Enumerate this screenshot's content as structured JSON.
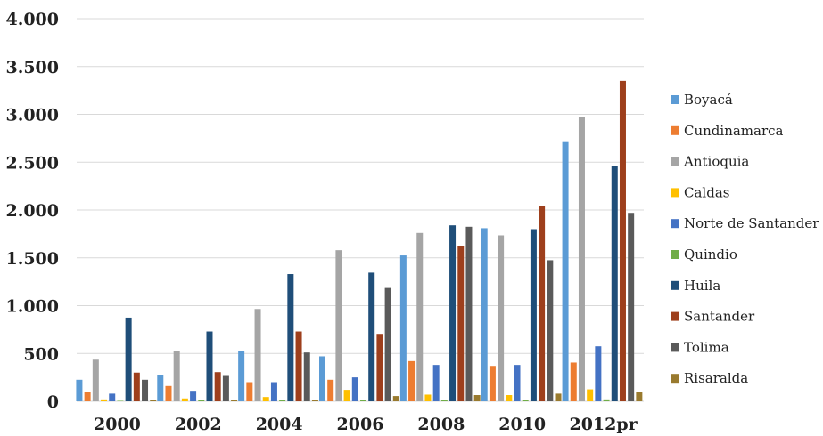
{
  "chart_data": {
    "type": "bar",
    "title": "",
    "xlabel": "",
    "ylabel": "",
    "categories": [
      "2000",
      "2002",
      "2004",
      "2006",
      "2008",
      "2010",
      "2012pr"
    ],
    "ylim": [
      0,
      4000
    ],
    "yticks": [
      0,
      500,
      1000,
      1500,
      2000,
      2500,
      3000,
      3500,
      4000
    ],
    "ytick_labels": [
      "0",
      "500",
      "1.000",
      "1.500",
      "2.000",
      "2.500",
      "3.000",
      "3.500",
      "4.000"
    ],
    "grid": true,
    "legend_position": "right",
    "series": [
      {
        "name": "Boyacá",
        "color": "#5b9bd5",
        "values": [
          225,
          275,
          525,
          470,
          1525,
          1810,
          2710
        ]
      },
      {
        "name": "Cundinamarca",
        "color": "#ed7d31",
        "values": [
          95,
          160,
          200,
          225,
          420,
          370,
          405
        ]
      },
      {
        "name": "Antioquia",
        "color": "#a5a5a5",
        "values": [
          435,
          525,
          965,
          1580,
          1760,
          1735,
          2970
        ]
      },
      {
        "name": "Caldas",
        "color": "#ffc000",
        "values": [
          20,
          30,
          45,
          120,
          70,
          65,
          125
        ]
      },
      {
        "name": "Norte de Santander",
        "color": "#4472c4",
        "values": [
          80,
          110,
          200,
          250,
          380,
          380,
          575
        ]
      },
      {
        "name": "Quindio",
        "color": "#70ad47",
        "values": [
          5,
          10,
          10,
          10,
          15,
          15,
          20
        ]
      },
      {
        "name": "Huila",
        "color": "#1f4e79",
        "values": [
          875,
          730,
          1330,
          1345,
          1840,
          1800,
          2465
        ]
      },
      {
        "name": "Santander",
        "color": "#9e3f1c",
        "values": [
          300,
          305,
          730,
          705,
          1620,
          2045,
          3350
        ]
      },
      {
        "name": "Tolima",
        "color": "#5a5a5a",
        "values": [
          225,
          265,
          510,
          1185,
          1825,
          1475,
          1970
        ]
      },
      {
        "name": "Risaralda",
        "color": "#997a2e",
        "values": [
          10,
          10,
          15,
          55,
          65,
          80,
          95
        ]
      }
    ]
  }
}
